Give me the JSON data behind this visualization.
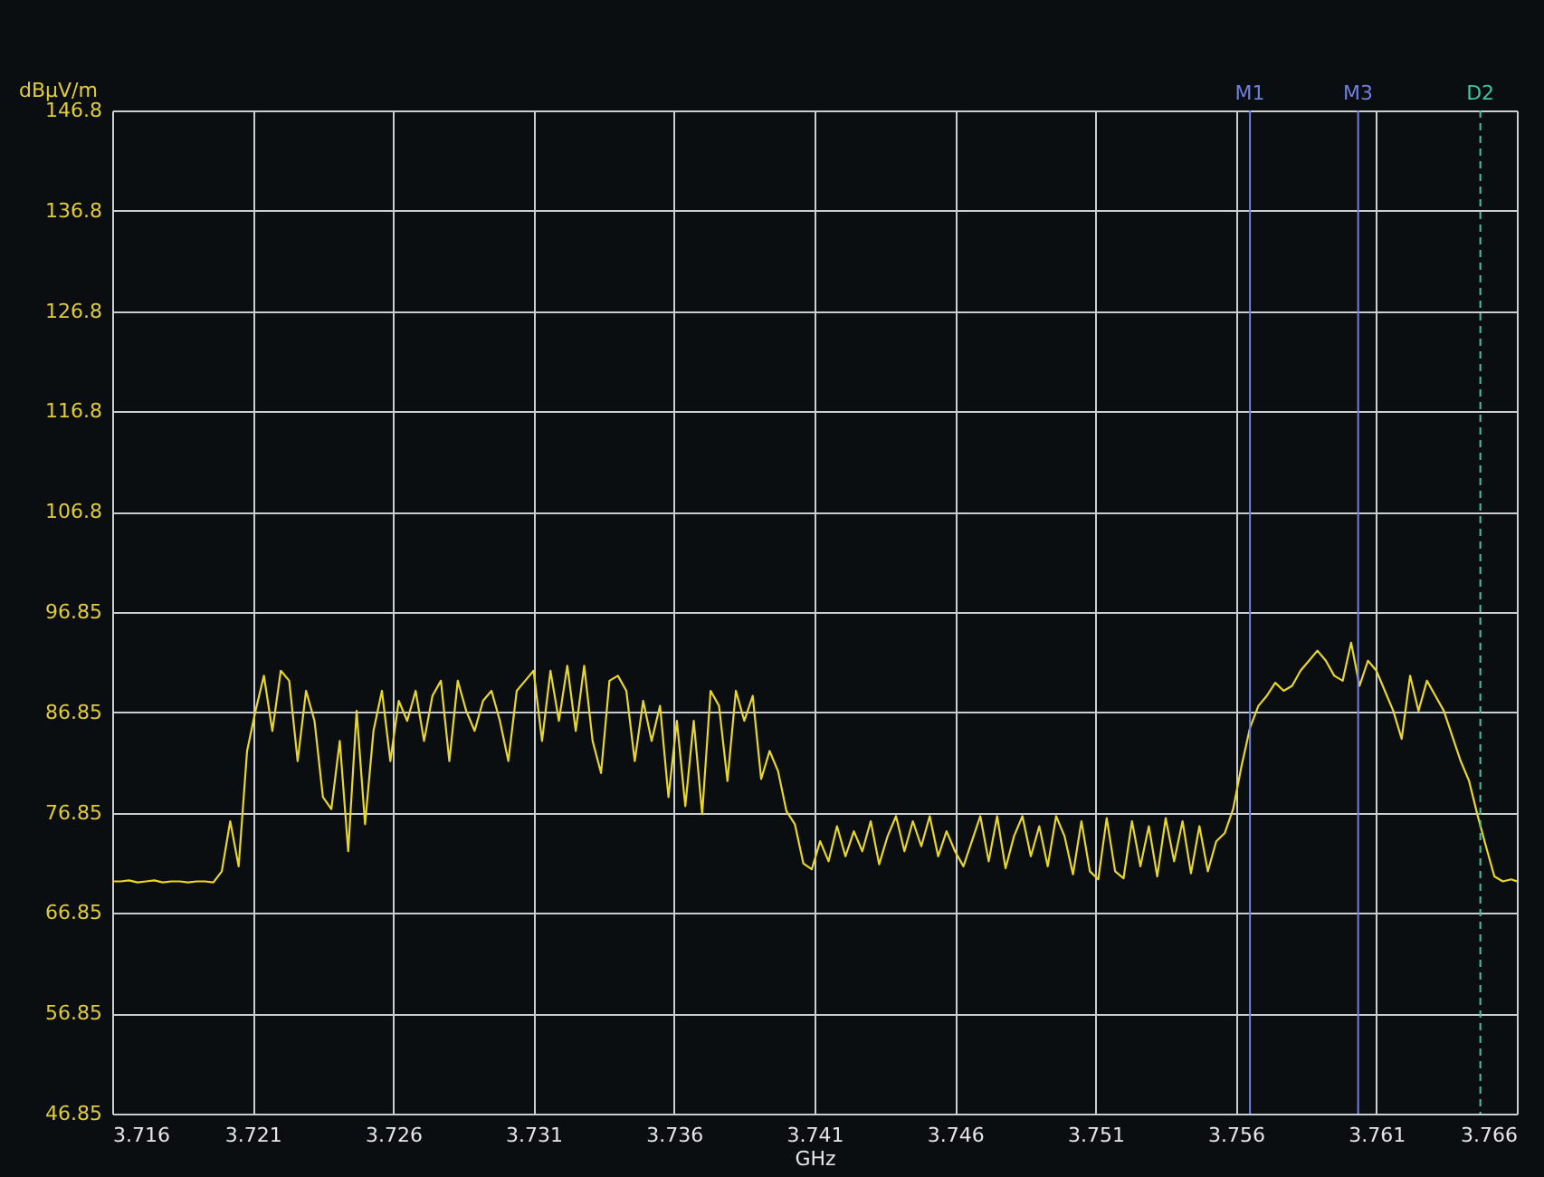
{
  "chart_data": {
    "type": "line",
    "xlabel": "GHz",
    "ylabel": "dBµV/m",
    "xlim": [
      3.716,
      3.766
    ],
    "xticks": [
      3.716,
      3.721,
      3.726,
      3.731,
      3.736,
      3.741,
      3.746,
      3.751,
      3.756,
      3.761,
      3.766
    ],
    "ylim": [
      46.85,
      146.85
    ],
    "yticks": [
      {
        "value": 46.85,
        "label": "46.85"
      },
      {
        "value": 56.85,
        "label": "56.85"
      },
      {
        "value": 66.85,
        "label": "66.85"
      },
      {
        "value": 76.85,
        "label": "76.85"
      },
      {
        "value": 86.85,
        "label": "86.85"
      },
      {
        "value": 96.85,
        "label": "96.85"
      },
      {
        "value": 106.85,
        "label": "106.8"
      },
      {
        "value": 116.85,
        "label": "116.8"
      },
      {
        "value": 126.85,
        "label": "126.8"
      },
      {
        "value": 136.85,
        "label": "136.8"
      },
      {
        "value": 146.85,
        "label": "146.8"
      }
    ],
    "grid": true,
    "marker": "none",
    "line_style": "solid",
    "x": [
      3.716,
      3.7163,
      3.7166,
      3.7169,
      3.7172,
      3.7175,
      3.7178,
      3.7181,
      3.7184,
      3.7187,
      3.719,
      3.7193,
      3.7196,
      3.7199,
      3.7202,
      3.7205,
      3.7208,
      3.7211,
      3.7214,
      3.7217,
      3.722,
      3.7223,
      3.7226,
      3.7229,
      3.7232,
      3.7235,
      3.7238,
      3.7241,
      3.7244,
      3.7247,
      3.725,
      3.7253,
      3.7256,
      3.7259,
      3.7262,
      3.7265,
      3.7268,
      3.7271,
      3.7274,
      3.7277,
      3.728,
      3.7283,
      3.7286,
      3.7289,
      3.7292,
      3.7295,
      3.7298,
      3.7301,
      3.7304,
      3.7307,
      3.731,
      3.7313,
      3.7316,
      3.7319,
      3.7322,
      3.7325,
      3.7328,
      3.7331,
      3.7334,
      3.7337,
      3.734,
      3.7343,
      3.7346,
      3.7349,
      3.7352,
      3.7355,
      3.7358,
      3.7361,
      3.7364,
      3.7367,
      3.737,
      3.7373,
      3.7376,
      3.7379,
      3.7382,
      3.7385,
      3.7388,
      3.7391,
      3.7394,
      3.7397,
      3.74,
      3.7403,
      3.7406,
      3.7409,
      3.7412,
      3.7415,
      3.7418,
      3.7421,
      3.7424,
      3.7427,
      3.743,
      3.7433,
      3.7436,
      3.7439,
      3.7442,
      3.7445,
      3.7448,
      3.7451,
      3.7454,
      3.7457,
      3.746,
      3.7463,
      3.7466,
      3.7469,
      3.7472,
      3.7475,
      3.7478,
      3.7481,
      3.7484,
      3.7487,
      3.749,
      3.7493,
      3.7496,
      3.7499,
      3.7502,
      3.7505,
      3.7508,
      3.7511,
      3.7514,
      3.7517,
      3.752,
      3.7523,
      3.7526,
      3.7529,
      3.7532,
      3.7535,
      3.7538,
      3.7541,
      3.7544,
      3.7547,
      3.755,
      3.7553,
      3.7556,
      3.7559,
      3.7562,
      3.7565,
      3.7568,
      3.7571,
      3.7574,
      3.7577,
      3.758,
      3.7583,
      3.7586,
      3.7589,
      3.7592,
      3.7595,
      3.7598,
      3.7601,
      3.7604,
      3.7607,
      3.761,
      3.7613,
      3.7616,
      3.7619,
      3.7622,
      3.7625,
      3.7628,
      3.7631,
      3.7634,
      3.7637,
      3.764,
      3.7643,
      3.7646,
      3.7649,
      3.7652,
      3.7655,
      3.7658,
      3.766
    ],
    "series": [
      {
        "color": "#e8d62a",
        "values": [
          70.0,
          70.0,
          70.1,
          69.9,
          70.0,
          70.1,
          69.9,
          70.0,
          70.0,
          69.9,
          70.0,
          70.0,
          69.9,
          71.0,
          76.0,
          71.5,
          83,
          87,
          90.5,
          85,
          91,
          90,
          82,
          89,
          86,
          78.4,
          77.2,
          84,
          73,
          87,
          75.7,
          85,
          89,
          82,
          88,
          86,
          89,
          84,
          88.5,
          90,
          82,
          90,
          87,
          85,
          88,
          89,
          86,
          82,
          89,
          90,
          91,
          84,
          91,
          86,
          91.5,
          85,
          91.5,
          84,
          80.8,
          90,
          90.5,
          89,
          82,
          88,
          84,
          87.5,
          78.4,
          86,
          77.5,
          86,
          76.7,
          89,
          87.5,
          80,
          89,
          86,
          88.5,
          80.2,
          83,
          81,
          77,
          75.7,
          71.8,
          71.2,
          74,
          72,
          75.5,
          72.5,
          75,
          73,
          76,
          71.7,
          74.5,
          76.5,
          73,
          76,
          73.5,
          76.5,
          72.5,
          75,
          73,
          71.5,
          74,
          76.5,
          72,
          76.5,
          71.3,
          74.5,
          76.5,
          72.5,
          75.5,
          71.5,
          76.5,
          74.5,
          70.7,
          76,
          71,
          70.2,
          76.3,
          71,
          70.3,
          76,
          71.5,
          75.5,
          70.5,
          76.3,
          72,
          76,
          70.8,
          75.5,
          71,
          74,
          74.8,
          77.2,
          81.5,
          85.3,
          87.5,
          88.5,
          89.8,
          89,
          89.5,
          91,
          92,
          93,
          92,
          90.5,
          90,
          93.8,
          89.5,
          92,
          91,
          89,
          87,
          84.2,
          90.5,
          87,
          90,
          88.5,
          87,
          84.5,
          82,
          80,
          76.6,
          73.5,
          70.5,
          70.0,
          70.2,
          70.0
        ]
      }
    ],
    "ref_lines": [
      {
        "axis": "x",
        "value": 3.7565,
        "label": "M1",
        "color": "#6f80e0",
        "line_style": "solid"
      },
      {
        "axis": "x",
        "value": 3.76035,
        "label": "M3",
        "color": "#6f80e0",
        "line_style": "solid"
      },
      {
        "axis": "x",
        "value": 3.7647,
        "label": "D2",
        "color": "#3cc8a0",
        "line_style": "dashed"
      }
    ]
  }
}
